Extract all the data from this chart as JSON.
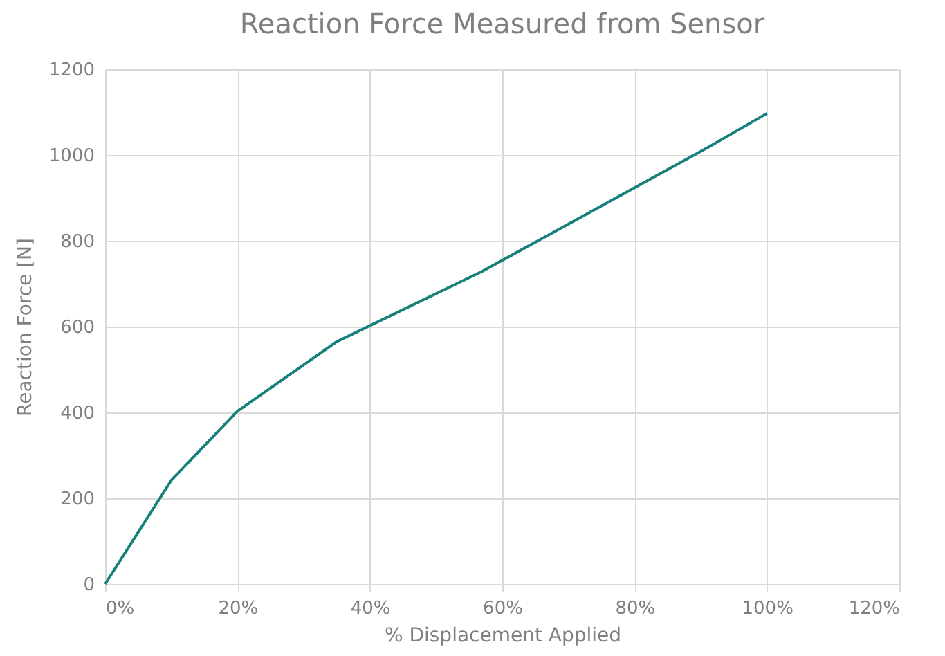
{
  "chart_data": {
    "type": "line",
    "title": "Reaction Force Measured from Sensor",
    "xlabel": "% Displacement Applied",
    "ylabel": "Reaction Force [N]",
    "x": [
      0,
      10,
      20,
      35,
      57,
      91,
      100
    ],
    "series": [
      {
        "color": "#17807b",
        "values": [
          0,
          242,
          403,
          565,
          729,
          1017,
          1097
        ]
      }
    ],
    "xlim": [
      0,
      120
    ],
    "xticks": [
      {
        "value": 0,
        "label": "0%"
      },
      {
        "value": 20,
        "label": "20%"
      },
      {
        "value": 40,
        "label": "40%"
      },
      {
        "value": 60,
        "label": "60%"
      },
      {
        "value": 80,
        "label": "80%"
      },
      {
        "value": 100,
        "label": "100%"
      },
      {
        "value": 120,
        "label": "120%"
      }
    ],
    "ylim": [
      0,
      1200
    ],
    "yticks": [
      0,
      200,
      400,
      600,
      800,
      1000,
      1200
    ],
    "grid": true,
    "marker": "none",
    "line_style": "solid"
  }
}
